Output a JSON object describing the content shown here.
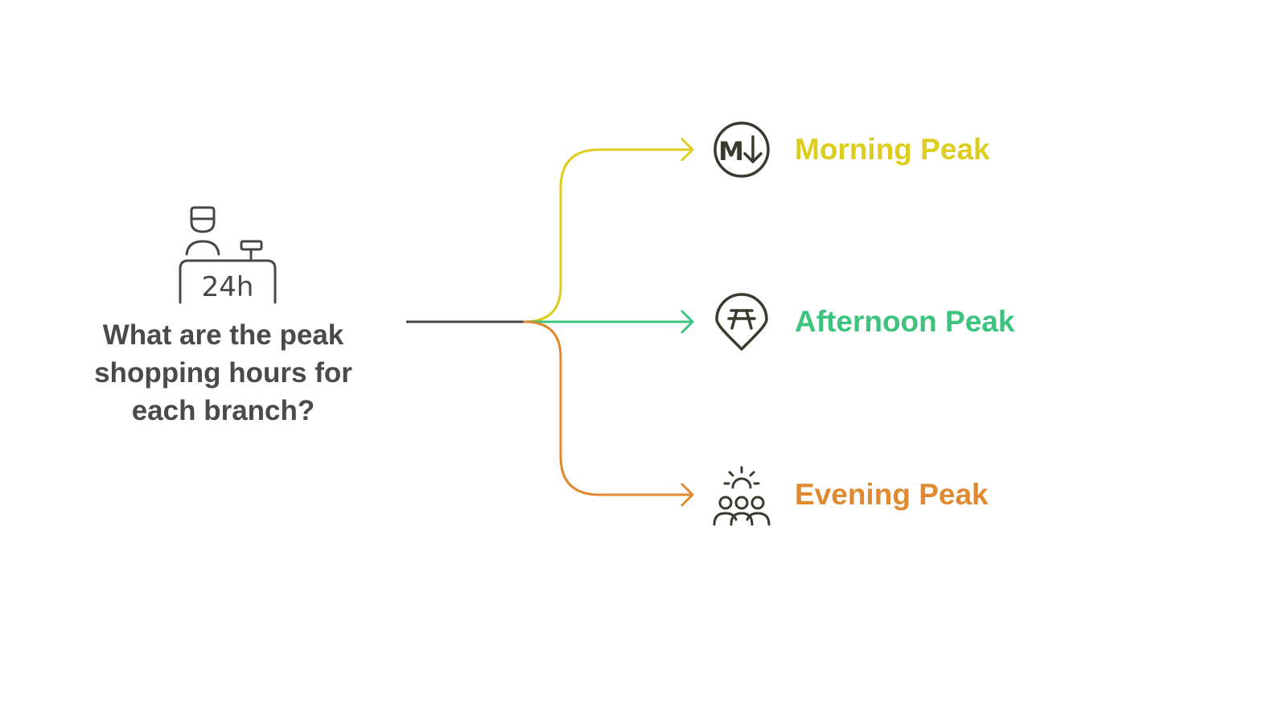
{
  "central_topic": {
    "question": "What are the peak shopping hours for each branch?",
    "icon": "store-clerk-24h-icon",
    "icon_text": "24h"
  },
  "branches": [
    {
      "label": "Morning Peak",
      "icon": "mortgage-rate-down-icon",
      "icon_text": "M",
      "color": "#dccd1f"
    },
    {
      "label": "Afternoon Peak",
      "icon": "picnic-location-pin-icon",
      "color": "#3cc47e"
    },
    {
      "label": "Evening Peak",
      "icon": "crowd-sunset-icon",
      "color": "#e0892f"
    }
  ],
  "colors": {
    "stem": "#474747",
    "icon_stroke": "#3b3a2e",
    "question_text": "#4a4a4a"
  }
}
